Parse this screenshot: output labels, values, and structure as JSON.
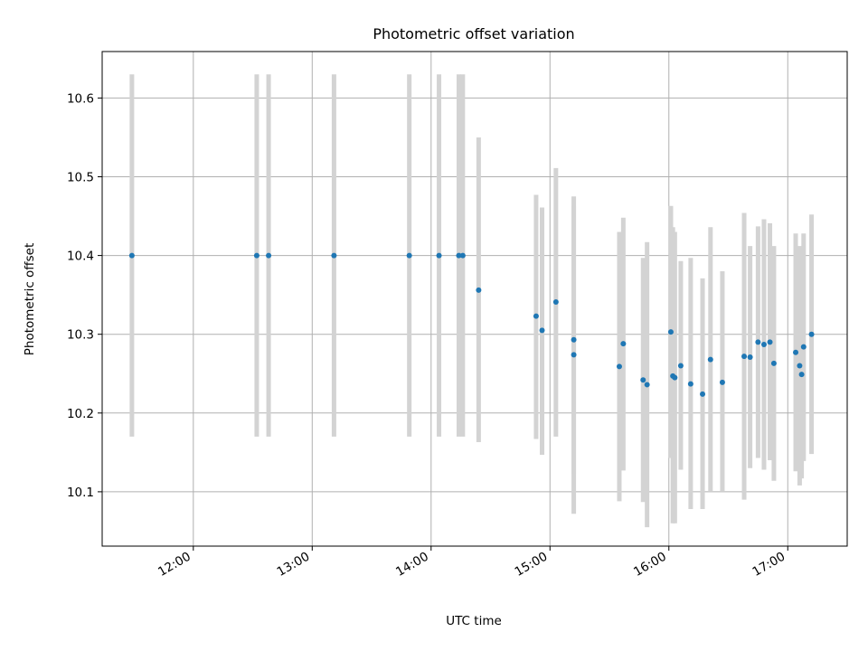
{
  "chart_data": {
    "type": "scatter",
    "title": "Photometric offset variation",
    "xlabel": "UTC time",
    "ylabel": "Photometric offset",
    "x_ticks": [
      "12:00",
      "13:00",
      "14:00",
      "15:00",
      "16:00",
      "17:00"
    ],
    "y_ticks": [
      "10.1",
      "10.2",
      "10.3",
      "10.4",
      "10.5",
      "10.6"
    ],
    "xlim": [
      "11:14",
      "17:30"
    ],
    "ylim": [
      10.031,
      10.659
    ],
    "grid": true,
    "errorbar_color": "#d3d3d3",
    "point_color": "#1f77b4",
    "series": [
      {
        "points": [
          {
            "x": "11:29",
            "y": 10.4,
            "ylo": 10.17,
            "yhi": 10.63
          },
          {
            "x": "12:32",
            "y": 10.4,
            "ylo": 10.17,
            "yhi": 10.63
          },
          {
            "x": "12:38",
            "y": 10.4,
            "ylo": 10.17,
            "yhi": 10.63
          },
          {
            "x": "13:11",
            "y": 10.4,
            "ylo": 10.17,
            "yhi": 10.63
          },
          {
            "x": "13:49",
            "y": 10.4,
            "ylo": 10.17,
            "yhi": 10.63
          },
          {
            "x": "14:04",
            "y": 10.4,
            "ylo": 10.17,
            "yhi": 10.63
          },
          {
            "x": "14:14",
            "y": 10.4,
            "ylo": 10.17,
            "yhi": 10.63
          },
          {
            "x": "14:16",
            "y": 10.4,
            "ylo": 10.17,
            "yhi": 10.63
          },
          {
            "x": "14:24",
            "y": 10.356,
            "ylo": 10.163,
            "yhi": 10.55
          },
          {
            "x": "14:53",
            "y": 10.323,
            "ylo": 10.167,
            "yhi": 10.477
          },
          {
            "x": "14:56",
            "y": 10.305,
            "ylo": 10.147,
            "yhi": 10.461
          },
          {
            "x": "15:03",
            "y": 10.341,
            "ylo": 10.17,
            "yhi": 10.511
          },
          {
            "x": "15:12",
            "y": 10.274,
            "ylo": 10.072,
            "yhi": 10.475
          },
          {
            "x": "15:12",
            "y": 10.293,
            "ylo": 10.123,
            "yhi": 10.463
          },
          {
            "x": "15:35",
            "y": 10.259,
            "ylo": 10.088,
            "yhi": 10.43
          },
          {
            "x": "15:37",
            "y": 10.288,
            "ylo": 10.127,
            "yhi": 10.448
          },
          {
            "x": "15:47",
            "y": 10.242,
            "ylo": 10.087,
            "yhi": 10.397
          },
          {
            "x": "15:49",
            "y": 10.236,
            "ylo": 10.055,
            "yhi": 10.417
          },
          {
            "x": "16:01",
            "y": 10.303,
            "ylo": 10.143,
            "yhi": 10.463
          },
          {
            "x": "16:02",
            "y": 10.247,
            "ylo": 10.06,
            "yhi": 10.436
          },
          {
            "x": "16:03",
            "y": 10.245,
            "ylo": 10.06,
            "yhi": 10.43
          },
          {
            "x": "16:06",
            "y": 10.26,
            "ylo": 10.128,
            "yhi": 10.393
          },
          {
            "x": "16:11",
            "y": 10.237,
            "ylo": 10.078,
            "yhi": 10.397
          },
          {
            "x": "16:17",
            "y": 10.224,
            "ylo": 10.078,
            "yhi": 10.371
          },
          {
            "x": "16:21",
            "y": 10.268,
            "ylo": 10.1,
            "yhi": 10.436
          },
          {
            "x": "16:27",
            "y": 10.239,
            "ylo": 10.1,
            "yhi": 10.38
          },
          {
            "x": "16:38",
            "y": 10.272,
            "ylo": 10.09,
            "yhi": 10.454
          },
          {
            "x": "16:41",
            "y": 10.271,
            "ylo": 10.13,
            "yhi": 10.412
          },
          {
            "x": "16:45",
            "y": 10.29,
            "ylo": 10.143,
            "yhi": 10.437
          },
          {
            "x": "16:48",
            "y": 10.287,
            "ylo": 10.128,
            "yhi": 10.446
          },
          {
            "x": "16:51",
            "y": 10.29,
            "ylo": 10.14,
            "yhi": 10.441
          },
          {
            "x": "16:53",
            "y": 10.263,
            "ylo": 10.114,
            "yhi": 10.412
          },
          {
            "x": "17:04",
            "y": 10.277,
            "ylo": 10.126,
            "yhi": 10.428
          },
          {
            "x": "17:06",
            "y": 10.26,
            "ylo": 10.108,
            "yhi": 10.412
          },
          {
            "x": "17:07",
            "y": 10.249,
            "ylo": 10.117,
            "yhi": 10.38
          },
          {
            "x": "17:08",
            "y": 10.284,
            "ylo": 10.139,
            "yhi": 10.428
          },
          {
            "x": "17:12",
            "y": 10.3,
            "ylo": 10.148,
            "yhi": 10.452
          }
        ]
      }
    ]
  }
}
